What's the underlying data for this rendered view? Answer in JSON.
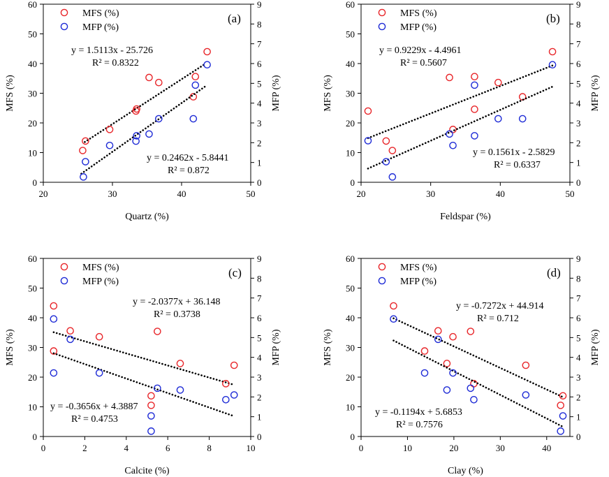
{
  "chart_data": [
    {
      "type": "scatter",
      "panel_label": "(a)",
      "xlabel": "Quartz (%)",
      "ylabel_left": "MFS (%)",
      "ylabel_right": "MFP (%)",
      "xlim": [
        20,
        50
      ],
      "xticks": [
        "20",
        "30",
        "40",
        "50"
      ],
      "ylim_left": [
        0,
        60
      ],
      "yticks_left": [
        "0",
        "10",
        "20",
        "30",
        "40",
        "50",
        "60"
      ],
      "ylim_right": [
        0,
        9
      ],
      "yticks_right": [
        "0",
        "1",
        "2",
        "3",
        "4",
        "5",
        "6",
        "7",
        "8",
        "9"
      ],
      "legend": [
        "MFS (%)",
        "MFP (%)"
      ],
      "legend_position": "top-left",
      "series": [
        {
          "name": "MFS (%)",
          "color": "#e8262a",
          "axis": "left",
          "points": [
            [
              25.7,
              10.7
            ],
            [
              26.1,
              13.9
            ],
            [
              29.6,
              17.8
            ],
            [
              33.4,
              24.0
            ],
            [
              33.5,
              24.7
            ],
            [
              35.3,
              35.3
            ],
            [
              36.7,
              33.6
            ],
            [
              41.7,
              28.8
            ],
            [
              42.0,
              35.6
            ],
            [
              43.7,
              44.0
            ]
          ],
          "trend": {
            "slope": 1.5113,
            "intercept": -25.726,
            "x_range": [
              26,
              43.5
            ]
          },
          "equation": "y = 1.5113x - 25.726",
          "r2": "R² = 0.8322"
        },
        {
          "name": "MFP (%)",
          "color": "#1e2bd6",
          "axis": "right",
          "points": [
            [
              25.8,
              0.27
            ],
            [
              26.1,
              1.04
            ],
            [
              29.6,
              1.86
            ],
            [
              33.4,
              2.08
            ],
            [
              33.5,
              2.35
            ],
            [
              35.3,
              2.44
            ],
            [
              36.7,
              3.21
            ],
            [
              41.7,
              3.21
            ],
            [
              42.0,
              4.91
            ],
            [
              43.7,
              5.94
            ]
          ],
          "trend": {
            "slope": 0.2462,
            "intercept": -5.8441,
            "x_range": [
              25.5,
              43.5
            ]
          },
          "equation": "y = 0.2462x - 5.8441",
          "r2": "R² = 0.872"
        }
      ]
    },
    {
      "type": "scatter",
      "panel_label": "(b)",
      "xlabel": "Feldspar (%)",
      "ylabel_left": "MFS (%)",
      "ylabel_right": "MFP (%)",
      "xlim": [
        20,
        50
      ],
      "xticks": [
        "20",
        "30",
        "40",
        "50"
      ],
      "ylim_left": [
        0,
        60
      ],
      "yticks_left": [
        "0",
        "10",
        "20",
        "30",
        "40",
        "50",
        "60"
      ],
      "ylim_right": [
        0,
        9
      ],
      "yticks_right": [
        "0",
        "1",
        "2",
        "3",
        "4",
        "5",
        "6",
        "7",
        "8",
        "9"
      ],
      "legend": [
        "MFS (%)",
        "MFP (%)"
      ],
      "legend_position": "top-center",
      "series": [
        {
          "name": "MFS (%)",
          "color": "#e8262a",
          "axis": "left",
          "points": [
            [
              21.0,
              24.0
            ],
            [
              23.6,
              13.9
            ],
            [
              24.5,
              10.7
            ],
            [
              32.7,
              35.3
            ],
            [
              33.2,
              17.8
            ],
            [
              36.3,
              35.6
            ],
            [
              36.3,
              24.6
            ],
            [
              39.7,
              33.6
            ],
            [
              43.2,
              28.8
            ],
            [
              47.5,
              44.0
            ]
          ],
          "trend": {
            "slope": 0.9229,
            "intercept": -4.4961,
            "x_range": [
              21,
              47.5
            ]
          },
          "equation": "y = 0.9229x - 4.4961",
          "r2": "R² = 0.5607"
        },
        {
          "name": "MFP (%)",
          "color": "#1e2bd6",
          "axis": "right",
          "points": [
            [
              21.0,
              2.1
            ],
            [
              23.6,
              1.04
            ],
            [
              24.5,
              0.27
            ],
            [
              32.7,
              2.44
            ],
            [
              33.2,
              1.86
            ],
            [
              36.3,
              4.91
            ],
            [
              36.3,
              2.35
            ],
            [
              39.7,
              3.21
            ],
            [
              43.2,
              3.21
            ],
            [
              47.5,
              5.94
            ]
          ],
          "trend": {
            "slope": 0.1561,
            "intercept": -2.5829,
            "x_range": [
              21,
              47.5
            ]
          },
          "equation": "y = 0.1561x - 2.5829",
          "r2": "R² = 0.6337"
        }
      ]
    },
    {
      "type": "scatter",
      "panel_label": "(c)",
      "xlabel": "Calcite  (%)",
      "ylabel_left": "MFS (%)",
      "ylabel_right": "MFP (%)",
      "xlim": [
        0,
        10
      ],
      "xticks": [
        "0",
        "2",
        "4",
        "6",
        "8",
        "10"
      ],
      "ylim_left": [
        0,
        60
      ],
      "yticks_left": [
        "0",
        "10",
        "20",
        "30",
        "40",
        "50",
        "60"
      ],
      "ylim_right": [
        0,
        9
      ],
      "yticks_right": [
        "0",
        "1",
        "2",
        "3",
        "4",
        "5",
        "6",
        "7",
        "8",
        "9"
      ],
      "legend": [
        "MFS (%)",
        "MFP (%)"
      ],
      "legend_position": "top-center",
      "series": [
        {
          "name": "MFS (%)",
          "color": "#e8262a",
          "axis": "left",
          "points": [
            [
              0.5,
              44.0
            ],
            [
              0.5,
              28.8
            ],
            [
              1.3,
              35.6
            ],
            [
              2.7,
              33.6
            ],
            [
              5.2,
              13.7
            ],
            [
              5.2,
              10.5
            ],
            [
              5.5,
              35.4
            ],
            [
              6.6,
              24.6
            ],
            [
              8.8,
              17.8
            ],
            [
              9.2,
              24.0
            ]
          ],
          "trend": {
            "slope": -2.0377,
            "intercept": 36.148,
            "x_range": [
              0.5,
              9.2
            ]
          },
          "equation": "y = -2.0377x + 36.148",
          "r2": "R² = 0.3738"
        },
        {
          "name": "MFP (%)",
          "color": "#1e2bd6",
          "axis": "right",
          "points": [
            [
              0.5,
              5.94
            ],
            [
              0.5,
              3.21
            ],
            [
              1.3,
              4.91
            ],
            [
              2.7,
              3.21
            ],
            [
              5.2,
              1.04
            ],
            [
              5.2,
              0.27
            ],
            [
              5.5,
              2.44
            ],
            [
              6.6,
              2.35
            ],
            [
              8.8,
              1.86
            ],
            [
              9.2,
              2.1
            ]
          ],
          "trend": {
            "slope": -0.3656,
            "intercept": 4.3887,
            "x_range": [
              0.5,
              9.2
            ]
          },
          "equation": "y = -0.3656x + 4.3887",
          "r2": "R² = 0.4753"
        }
      ]
    },
    {
      "type": "scatter",
      "panel_label": "(d)",
      "xlabel": "Clay  (%)",
      "ylabel_left": "MFS (%)",
      "ylabel_right": "MFP (%)",
      "xlim": [
        0,
        45
      ],
      "xticks": [
        "0",
        "10",
        "20",
        "30",
        "40"
      ],
      "ylim_left": [
        0,
        60
      ],
      "yticks_left": [
        "0",
        "10",
        "20",
        "30",
        "40",
        "50",
        "60"
      ],
      "ylim_right": [
        0,
        9
      ],
      "yticks_right": [
        "0",
        "1",
        "2",
        "3",
        "4",
        "5",
        "6",
        "7",
        "8",
        "9"
      ],
      "legend": [
        "MFS (%)",
        "MFP (%)"
      ],
      "legend_position": "top-left",
      "series": [
        {
          "name": "MFS (%)",
          "color": "#e8262a",
          "axis": "left",
          "points": [
            [
              7.0,
              44.0
            ],
            [
              13.7,
              28.8
            ],
            [
              16.6,
              35.6
            ],
            [
              18.5,
              24.6
            ],
            [
              19.8,
              33.6
            ],
            [
              23.6,
              35.4
            ],
            [
              24.3,
              17.8
            ],
            [
              35.5,
              24.0
            ],
            [
              43.0,
              10.5
            ],
            [
              43.5,
              13.7
            ]
          ],
          "trend": {
            "slope": -0.7272,
            "intercept": 44.914,
            "x_range": [
              7,
              43.5
            ]
          },
          "equation": "y = -0.7272x + 44.914",
          "r2": "R² = 0.712"
        },
        {
          "name": "MFP (%)",
          "color": "#1e2bd6",
          "axis": "right",
          "points": [
            [
              7.0,
              5.94
            ],
            [
              13.7,
              3.21
            ],
            [
              16.6,
              4.91
            ],
            [
              18.5,
              2.35
            ],
            [
              19.8,
              3.21
            ],
            [
              23.6,
              2.44
            ],
            [
              24.3,
              1.86
            ],
            [
              35.5,
              2.1
            ],
            [
              43.0,
              0.27
            ],
            [
              43.5,
              1.04
            ]
          ],
          "trend": {
            "slope": -0.1194,
            "intercept": 5.6853,
            "x_range": [
              7,
              43.5
            ]
          },
          "equation": "y = -0.1194x + 5.6853",
          "r2": "R² = 0.7576"
        }
      ]
    }
  ]
}
